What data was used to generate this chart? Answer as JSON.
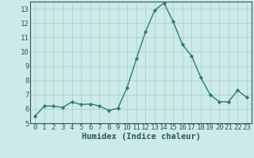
{
  "x": [
    0,
    1,
    2,
    3,
    4,
    5,
    6,
    7,
    8,
    9,
    10,
    11,
    12,
    13,
    14,
    15,
    16,
    17,
    18,
    19,
    20,
    21,
    22,
    23
  ],
  "y": [
    5.5,
    6.2,
    6.2,
    6.1,
    6.5,
    6.3,
    6.35,
    6.2,
    5.9,
    6.05,
    7.5,
    9.5,
    11.4,
    12.9,
    13.4,
    12.1,
    10.5,
    9.7,
    8.2,
    7.0,
    6.5,
    6.5,
    7.3,
    6.8
  ],
  "line_color": "#2d7d6e",
  "marker": "D",
  "marker_size": 2.2,
  "bg_color": "#cceae7",
  "grid_color": "#b0d0cc",
  "axis_color": "#2d5a55",
  "xlabel": "Humidex (Indice chaleur)",
  "ylim": [
    5,
    13.5
  ],
  "xlim": [
    -0.5,
    23.5
  ],
  "yticks": [
    5,
    6,
    7,
    8,
    9,
    10,
    11,
    12,
    13
  ],
  "xticks": [
    0,
    1,
    2,
    3,
    4,
    5,
    6,
    7,
    8,
    9,
    10,
    11,
    12,
    13,
    14,
    15,
    16,
    17,
    18,
    19,
    20,
    21,
    22,
    23
  ],
  "xlabel_fontsize": 7.5,
  "tick_fontsize": 6.5,
  "line_width": 1.0
}
